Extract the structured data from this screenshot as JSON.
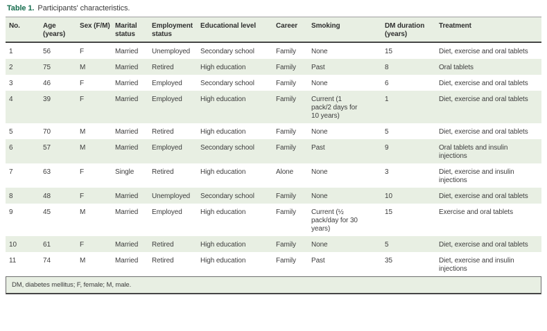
{
  "caption": {
    "label": "Table 1.",
    "text": "Participants' characteristics."
  },
  "table": {
    "columns": [
      "No.",
      "Age (years)",
      "Sex (F/M)",
      "Marital status",
      "Employment status",
      "Educational level",
      "Career",
      "Smoking",
      "DM duration (years)",
      "Treatment"
    ],
    "rows": [
      [
        "1",
        "56",
        "F",
        "Married",
        "Unemployed",
        "Secondary school",
        "Family",
        "None",
        "15",
        "Diet, exercise and oral tablets"
      ],
      [
        "2",
        "75",
        "M",
        "Married",
        "Retired",
        "High education",
        "Family",
        "Past",
        "8",
        "Oral tablets"
      ],
      [
        "3",
        "46",
        "F",
        "Married",
        "Employed",
        "Secondary school",
        "Family",
        "None",
        "6",
        "Diet, exercise and oral tablets"
      ],
      [
        "4",
        "39",
        "F",
        "Married",
        "Employed",
        "High education",
        "Family",
        "Current (1 pack/2 days for 10 years)",
        "1",
        "Diet, exercise and oral tablets"
      ],
      [
        "5",
        "70",
        "M",
        "Married",
        "Retired",
        "High education",
        "Family",
        "None",
        "5",
        "Diet, exercise and oral tablets"
      ],
      [
        "6",
        "57",
        "M",
        "Married",
        "Employed",
        "Secondary school",
        "Family",
        "Past",
        "9",
        "Oral tablets and insulin injections"
      ],
      [
        "7",
        "63",
        "F",
        "Single",
        "Retired",
        "High education",
        "Alone",
        "None",
        "3",
        "Diet, exercise and insulin injections"
      ],
      [
        "8",
        "48",
        "F",
        "Married",
        "Unemployed",
        "Secondary school",
        "Family",
        "None",
        "10",
        "Diet, exercise and oral tablets"
      ],
      [
        "9",
        "45",
        "M",
        "Married",
        "Employed",
        "High education",
        "Family",
        "Current (½ pack/day for 30 years)",
        "15",
        "Exercise and oral tablets"
      ],
      [
        "10",
        "61",
        "F",
        "Married",
        "Retired",
        "High education",
        "Family",
        "None",
        "5",
        "Diet, exercise and oral tablets"
      ],
      [
        "11",
        "74",
        "M",
        "Married",
        "Retired",
        "High education",
        "Family",
        "Past",
        "35",
        "Diet, exercise and insulin injections"
      ]
    ]
  },
  "footnote": "DM, diabetes mellitus; F, female; M, male.",
  "colors": {
    "accent": "#146c4d",
    "row_alt_bg": "#e8efe3",
    "text": "#3d3d3d"
  }
}
